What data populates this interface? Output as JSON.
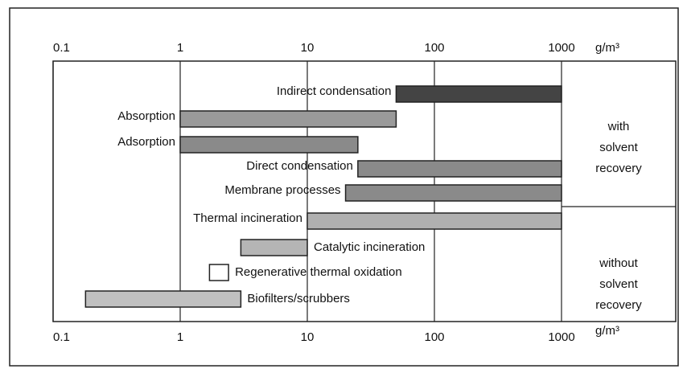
{
  "chart_data": {
    "type": "range-bar",
    "xscale": "log",
    "xlim": [
      0.1,
      1000
    ],
    "xticks": [
      0.1,
      1,
      10,
      100,
      1000
    ],
    "unit": "g/m³",
    "grid": true,
    "categories": [
      "Indirect condensation",
      "Absorption",
      "Adsorption",
      "Direct condensation",
      "Membrane processes",
      "Thermal incineration",
      "Catalytic incineration",
      "Regenerative thermal oxidation",
      "Biofilters/scrubbers"
    ],
    "values": [
      [
        50,
        1000
      ],
      [
        1,
        50
      ],
      [
        1,
        25
      ],
      [
        25,
        1000
      ],
      [
        20,
        1000
      ],
      [
        10,
        1000
      ],
      [
        3,
        10
      ],
      [
        1.7,
        2.4
      ],
      [
        0.18,
        3
      ]
    ],
    "colors": [
      "#444444",
      "#9a9a9a",
      "#8a8a8a",
      "#8a8a8a",
      "#8a8a8a",
      "#b0b0b0",
      "#b5b5b5",
      "#ffffff",
      "#c0c0c0"
    ],
    "side_labels": [
      [
        "with",
        "solvent",
        "recovery"
      ],
      [
        "without",
        "solvent",
        "recovery"
      ]
    ]
  }
}
